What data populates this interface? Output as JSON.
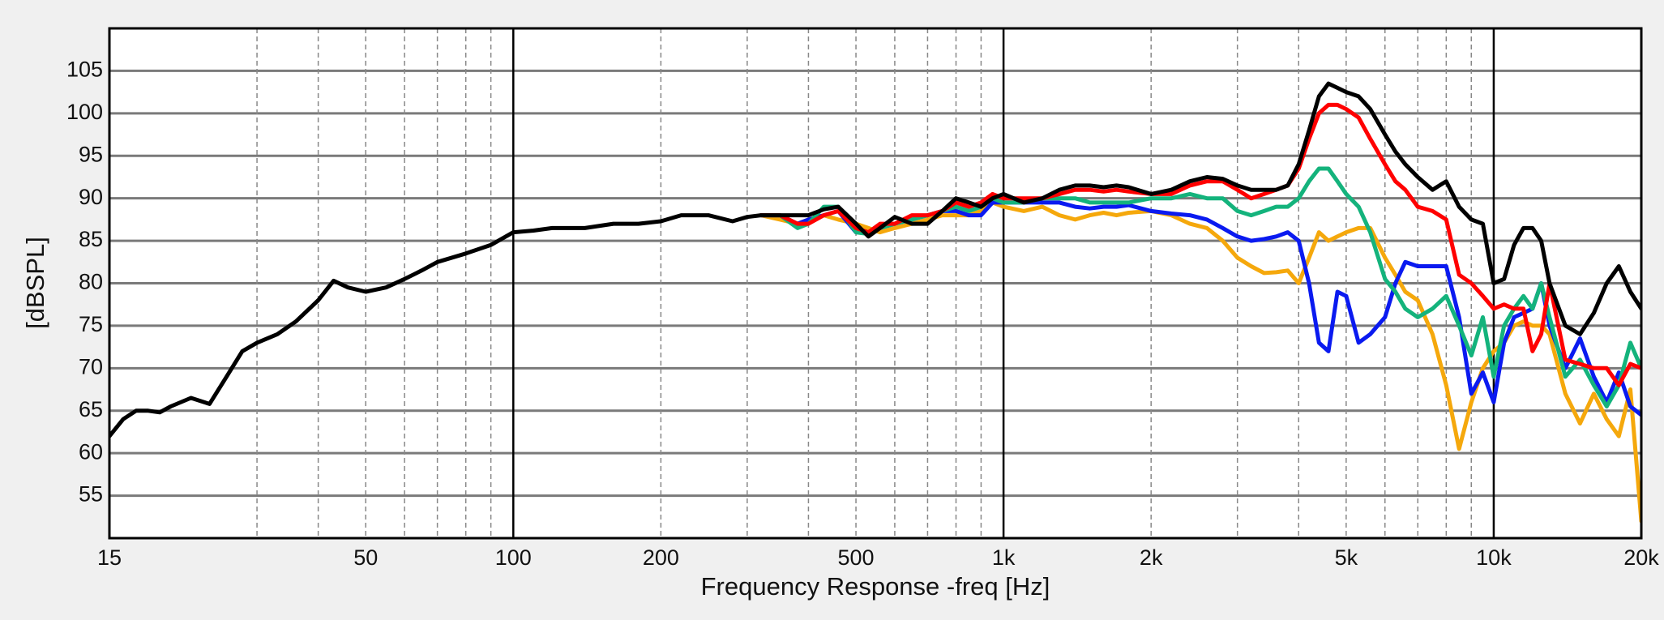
{
  "chart_data": {
    "type": "line",
    "x_label": "Frequency Response -freq [Hz]",
    "y_label": "[dBSPL]",
    "xscale": "log",
    "xlim": [
      15,
      20000
    ],
    "ylim": [
      50,
      110
    ],
    "xticks": [
      15,
      50,
      100,
      200,
      500,
      {
        "value": 1000,
        "label": "1k"
      },
      {
        "value": 2000,
        "label": "2k"
      },
      {
        "value": 5000,
        "label": "5k"
      },
      {
        "value": 10000,
        "label": "10k"
      },
      {
        "value": 20000,
        "label": "20k"
      }
    ],
    "x_minor_grid": [
      30,
      40,
      60,
      70,
      80,
      90,
      300,
      400,
      600,
      700,
      800,
      900,
      3000,
      4000,
      6000,
      7000,
      8000,
      9000
    ],
    "yticks": [
      55,
      60,
      65,
      70,
      75,
      80,
      85,
      90,
      95,
      100,
      105
    ],
    "grid": true,
    "x": [
      15,
      16,
      17,
      18,
      19,
      20,
      22,
      24,
      26,
      28,
      30,
      33,
      36,
      40,
      43,
      46,
      50,
      55,
      60,
      65,
      70,
      80,
      90,
      100,
      110,
      120,
      140,
      160,
      180,
      200,
      220,
      250,
      280,
      300,
      320,
      350,
      380,
      400,
      430,
      460,
      500,
      530,
      560,
      600,
      650,
      700,
      750,
      800,
      850,
      900,
      950,
      1000,
      1100,
      1200,
      1300,
      1400,
      1500,
      1600,
      1700,
      1800,
      2000,
      2200,
      2400,
      2600,
      2800,
      3000,
      3200,
      3400,
      3600,
      3800,
      4000,
      4200,
      4400,
      4600,
      4800,
      5000,
      5300,
      5600,
      6000,
      6300,
      6600,
      7000,
      7500,
      8000,
      8500,
      9000,
      9500,
      10000,
      10500,
      11000,
      11500,
      12000,
      12500,
      13000,
      14000,
      15000,
      16000,
      17000,
      18000,
      19000,
      20000
    ],
    "series": [
      {
        "color": "#000000",
        "values": [
          62,
          64,
          65,
          65,
          64.8,
          65.5,
          66.5,
          65.8,
          69,
          72,
          73,
          74,
          75.5,
          78,
          80.3,
          79.5,
          79,
          79.5,
          80.5,
          81.5,
          82.5,
          83.5,
          84.5,
          86,
          86.2,
          86.5,
          86.5,
          87,
          87,
          87.3,
          88,
          88,
          87.3,
          87.8,
          88,
          88,
          88,
          88,
          88.7,
          89,
          87,
          85.5,
          86.5,
          87.8,
          87,
          87,
          88.5,
          90,
          89.5,
          89,
          90,
          90.5,
          89.5,
          90,
          91,
          91.5,
          91.5,
          91.3,
          91.5,
          91.3,
          90.5,
          91,
          92,
          92.5,
          92.3,
          91.5,
          91,
          91,
          91,
          91.5,
          94,
          98,
          102,
          103.5,
          103,
          102.5,
          102,
          100.5,
          97.5,
          95.5,
          94,
          92.5,
          91,
          92,
          89,
          87.5,
          87,
          80,
          80.5,
          84.5,
          86.5,
          86.5,
          85,
          80,
          75,
          74,
          76.5,
          80,
          82,
          79,
          77
        ]
      },
      {
        "color": "#ff0000",
        "values": [
          null,
          null,
          null,
          null,
          null,
          null,
          null,
          null,
          null,
          null,
          null,
          null,
          null,
          null,
          null,
          null,
          null,
          null,
          null,
          null,
          null,
          null,
          null,
          null,
          null,
          null,
          null,
          null,
          null,
          null,
          null,
          null,
          null,
          null,
          88,
          88,
          87,
          87,
          88,
          88.5,
          86.5,
          86,
          87,
          87,
          88,
          88,
          88.5,
          89.5,
          89,
          89.5,
          90.5,
          90,
          90,
          90,
          90.5,
          91,
          91,
          90.8,
          91,
          90.8,
          90.5,
          90.5,
          91.5,
          92,
          92,
          91,
          90,
          90.5,
          91,
          91.5,
          93.5,
          97,
          100,
          101,
          101,
          100.5,
          99.5,
          97,
          94,
          92,
          91,
          89,
          88.5,
          87.5,
          81,
          80,
          78.5,
          77,
          77.5,
          77,
          77,
          72,
          74,
          80,
          71,
          70.5,
          70,
          70,
          68,
          70.5,
          70
        ]
      },
      {
        "color": "#14b37c",
        "values": [
          null,
          null,
          null,
          null,
          null,
          null,
          null,
          null,
          null,
          null,
          null,
          null,
          null,
          null,
          null,
          null,
          null,
          null,
          null,
          null,
          null,
          null,
          null,
          null,
          null,
          null,
          null,
          null,
          null,
          null,
          null,
          null,
          null,
          null,
          88,
          88,
          86.5,
          87,
          89,
          89,
          86,
          85.8,
          86.5,
          87,
          87.5,
          88,
          88.5,
          89,
          88.5,
          89,
          90,
          89.5,
          89.5,
          90,
          90,
          90,
          89.5,
          89.5,
          89.5,
          89.5,
          90,
          90,
          90.5,
          90,
          90,
          88.5,
          88,
          88.5,
          89,
          89,
          90,
          92,
          93.5,
          93.5,
          92,
          90.5,
          89,
          86,
          80.5,
          79,
          77,
          76,
          77,
          78.5,
          75,
          71.5,
          76,
          69,
          75,
          77,
          78.5,
          77,
          80,
          76,
          69,
          71,
          68,
          65.5,
          68,
          73,
          70
        ]
      },
      {
        "color": "#0a1af0",
        "values": [
          null,
          null,
          null,
          null,
          null,
          null,
          null,
          null,
          null,
          null,
          null,
          null,
          null,
          null,
          null,
          null,
          null,
          null,
          null,
          null,
          null,
          null,
          null,
          null,
          null,
          null,
          null,
          null,
          null,
          null,
          null,
          null,
          null,
          null,
          88,
          88,
          87,
          87.5,
          88,
          88.5,
          86,
          86,
          86.5,
          87,
          87.5,
          88,
          88.5,
          88.5,
          88,
          88,
          89.5,
          89.5,
          89.5,
          89.5,
          89.5,
          89,
          88.8,
          89,
          89,
          89.2,
          88.5,
          88.2,
          88,
          87.5,
          86.5,
          85.5,
          85,
          85.2,
          85.5,
          86,
          85,
          80,
          73,
          72,
          79,
          78.5,
          73,
          74,
          76,
          80,
          82.5,
          82,
          82,
          82,
          76,
          67,
          69.5,
          66,
          73,
          76,
          76.5,
          77,
          80,
          75,
          70,
          73.5,
          69,
          66,
          69.5,
          65.5,
          64.5
        ]
      },
      {
        "color": "#f5a80c",
        "values": [
          null,
          null,
          null,
          null,
          null,
          null,
          null,
          null,
          null,
          null,
          null,
          null,
          null,
          null,
          null,
          null,
          null,
          null,
          null,
          null,
          null,
          null,
          null,
          null,
          null,
          null,
          null,
          null,
          null,
          null,
          null,
          null,
          null,
          null,
          88,
          87.5,
          87,
          87.5,
          88,
          87.5,
          87,
          86.5,
          86,
          86.5,
          87,
          87.5,
          88,
          88,
          88,
          88.5,
          89.5,
          89,
          88.5,
          89,
          88,
          87.5,
          88,
          88.3,
          88,
          88.3,
          88.5,
          88,
          87,
          86.5,
          85,
          83,
          82,
          81.2,
          81.3,
          81.5,
          80,
          83,
          86,
          85,
          85.5,
          86,
          86.5,
          86.5,
          83,
          81,
          79,
          78,
          74,
          68,
          60.5,
          66,
          70,
          72,
          73,
          75,
          75.5,
          75,
          75,
          74,
          67,
          63.5,
          67,
          64,
          62,
          67.5,
          52
        ]
      }
    ]
  }
}
